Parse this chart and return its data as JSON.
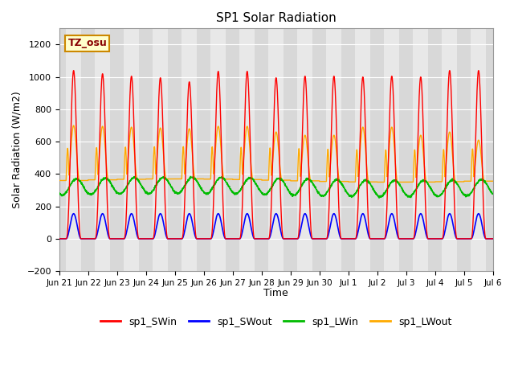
{
  "title": "SP1 Solar Radiation",
  "ylabel": "Solar Radiation (W/m2)",
  "xlabel": "Time",
  "ylim": [
    -200,
    1300
  ],
  "yticks": [
    -200,
    0,
    200,
    400,
    600,
    800,
    1000,
    1200
  ],
  "tz_label": "TZ_osu",
  "colors": {
    "SWin": "#ff0000",
    "SWout": "#0000ff",
    "LWin": "#00bb00",
    "LWout": "#ffaa00"
  },
  "legend_labels": [
    "sp1_SWin",
    "sp1_SWout",
    "sp1_LWin",
    "sp1_LWout"
  ],
  "xtick_labels": [
    "Jun 21",
    "Jun 22",
    "Jun 23",
    "Jun 24",
    "Jun 25",
    "Jun 26",
    "Jun 27",
    "Jun 28",
    "Jun 29",
    "Jun 30",
    "Jul 1",
    "Jul 2",
    "Jul 3",
    "Jul 4",
    "Jul 5",
    "Jul 6"
  ],
  "background_color": "#ffffff",
  "plot_bg_color": "#d8d8d8",
  "band_color": "#e8e8e8",
  "num_days": 15,
  "pts_per_day": 144
}
